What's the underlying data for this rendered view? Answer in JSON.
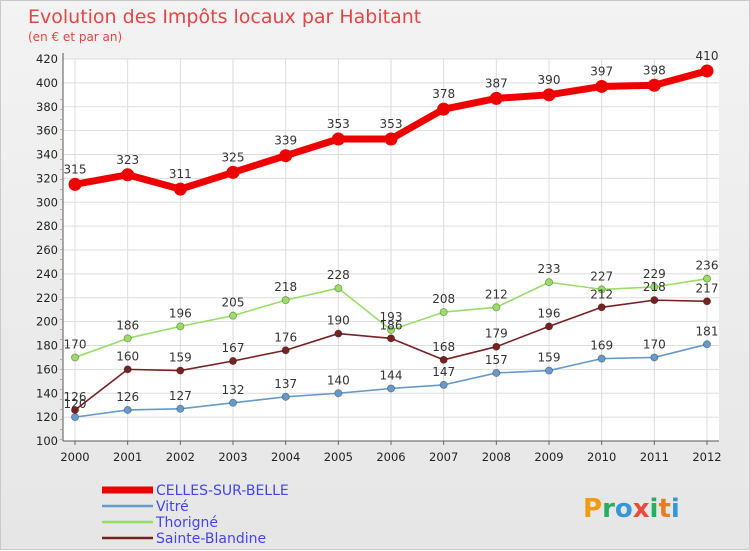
{
  "header": {
    "title": "Evolution des Impôts locaux par Habitant",
    "subtitle": "(en € et par an)"
  },
  "logo": {
    "text": "Proxiti",
    "letter_colors": [
      "#f39c12",
      "#27ae60",
      "#3498db",
      "#e74c3c",
      "#27ae60",
      "#e67e22",
      "#3498db"
    ]
  },
  "chart_data": {
    "type": "line",
    "categories": [
      "2000",
      "2001",
      "2002",
      "2003",
      "2004",
      "2005",
      "2006",
      "2007",
      "2008",
      "2009",
      "2010",
      "2011",
      "2012"
    ],
    "ylim": [
      100,
      420
    ],
    "yticks": [
      100,
      120,
      140,
      160,
      180,
      200,
      220,
      240,
      260,
      280,
      300,
      320,
      340,
      360,
      380,
      400,
      420
    ],
    "grid": true,
    "legend_position": "bottom-left",
    "series": [
      {
        "name": "CELLES-SUR-BELLE",
        "color": "#ee0000",
        "values": [
          315,
          323,
          311,
          325,
          339,
          353,
          353,
          378,
          387,
          390,
          397,
          398,
          410
        ]
      },
      {
        "name": "Vitré",
        "color": "#6699cc",
        "values": [
          120,
          126,
          127,
          132,
          137,
          140,
          144,
          147,
          157,
          159,
          169,
          170,
          181
        ]
      },
      {
        "name": "Thorigné",
        "color": "#99dd66",
        "values": [
          170,
          186,
          196,
          205,
          218,
          228,
          193,
          208,
          212,
          233,
          227,
          229,
          236
        ]
      },
      {
        "name": "Sainte-Blandine",
        "color": "#772222",
        "values": [
          126,
          160,
          159,
          167,
          176,
          190,
          186,
          168,
          179,
          196,
          212,
          218,
          217
        ]
      }
    ]
  }
}
